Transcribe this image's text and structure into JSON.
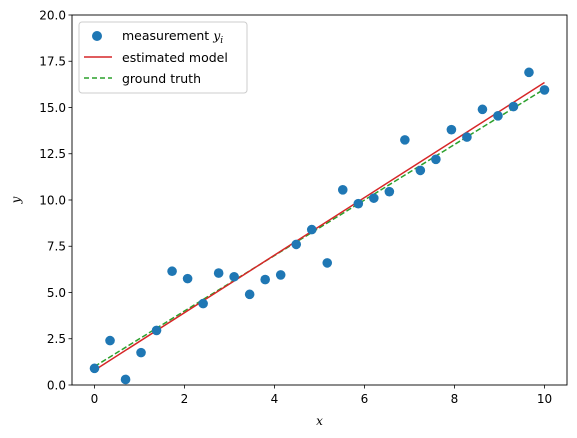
{
  "chart_data": {
    "type": "scatter",
    "title": "",
    "xlabel": "x",
    "ylabel": "y",
    "xlim": [
      -0.5,
      10.5
    ],
    "ylim": [
      0,
      20
    ],
    "xticks": [
      0,
      2,
      4,
      6,
      8,
      10
    ],
    "yticks": [
      0.0,
      2.5,
      5.0,
      7.5,
      10.0,
      12.5,
      15.0,
      17.5,
      20.0
    ],
    "xtick_labels": [
      "0",
      "2",
      "4",
      "6",
      "8",
      "10"
    ],
    "ytick_labels": [
      "0.0",
      "2.5",
      "5.0",
      "7.5",
      "10.0",
      "12.5",
      "15.0",
      "17.5",
      "20.0"
    ],
    "grid": false,
    "legend_position": "top-left",
    "legend": {
      "measurement_prefix": "measurement ",
      "measurement_var": "y",
      "measurement_sub": "i",
      "estimated": "estimated model",
      "truth": "ground truth"
    },
    "series": [
      {
        "name": "measurement y_i",
        "kind": "scatter",
        "color": "#1f77b4",
        "x": [
          0.0,
          0.345,
          0.69,
          1.034,
          1.379,
          1.724,
          2.069,
          2.414,
          2.759,
          3.103,
          3.448,
          3.793,
          4.138,
          4.483,
          4.828,
          5.172,
          5.517,
          5.862,
          6.207,
          6.552,
          6.897,
          7.241,
          7.586,
          7.931,
          8.276,
          8.621,
          8.966,
          9.31,
          9.655,
          10.0
        ],
        "y": [
          0.9,
          2.4,
          0.3,
          1.75,
          2.95,
          6.15,
          5.75,
          4.4,
          6.05,
          5.85,
          4.9,
          5.7,
          5.95,
          7.6,
          8.4,
          6.6,
          10.55,
          9.8,
          10.1,
          10.45,
          13.25,
          11.6,
          12.2,
          13.8,
          13.4,
          14.9,
          14.55,
          15.05,
          16.9,
          15.95
        ]
      },
      {
        "name": "estimated model",
        "kind": "line",
        "color": "#d62728",
        "dash": "solid",
        "x": [
          0,
          10
        ],
        "y": [
          0.8,
          16.35
        ]
      },
      {
        "name": "ground truth",
        "kind": "line",
        "color": "#2ca02c",
        "dash": "dashed",
        "x": [
          0,
          10
        ],
        "y": [
          1.0,
          16.0
        ]
      }
    ]
  }
}
